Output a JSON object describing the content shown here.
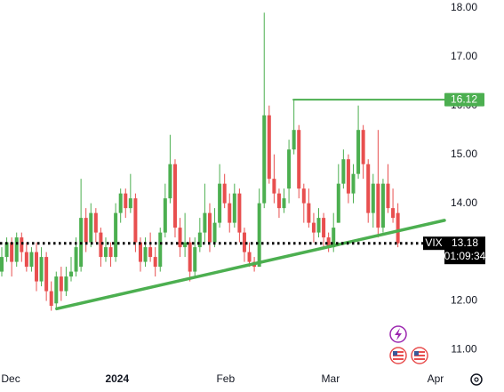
{
  "chart_data": {
    "type": "candlestick",
    "symbol": "VIX",
    "countdown": "01:09:34",
    "up_color": "#4caf50",
    "down_color": "#e84f4f",
    "open": [
      12.6,
      12.9,
      13.2,
      12.8,
      13.3,
      13.0,
      12.7,
      13.0,
      12.4,
      12.9,
      12.2,
      11.95,
      12.5,
      12.2,
      12.5,
      12.6,
      12.7,
      13.7,
      13.2,
      13.8,
      13.4,
      12.9,
      13.1,
      12.9,
      13.8,
      14.2,
      13.9,
      14.1,
      13.2,
      12.8,
      13.1,
      12.9,
      12.7,
      13.4,
      14.1,
      14.8,
      13.5,
      13.1,
      13.2,
      12.6,
      13.1,
      13.4,
      13.8,
      13.2,
      13.6,
      14.4,
      14.0,
      13.6,
      14.2,
      13.4,
      13.0,
      12.8,
      12.7,
      14.0,
      15.8,
      14.5,
      14.2,
      13.9,
      14.3,
      15.1,
      15.5,
      14.3,
      14.0,
      13.6,
      13.4,
      13.7,
      13.3,
      13.1,
      13.6,
      14.4,
      14.9,
      14.2,
      14.6,
      15.5,
      14.8,
      13.8,
      14.4,
      13.5,
      14.4,
      13.9,
      13.8
    ],
    "high": [
      13.1,
      13.3,
      13.3,
      13.4,
      13.4,
      13.2,
      13.1,
      13.2,
      13.1,
      13.0,
      12.4,
      12.6,
      12.7,
      12.7,
      12.9,
      13.3,
      14.5,
      13.9,
      14.0,
      13.9,
      13.5,
      13.3,
      13.2,
      14.0,
      14.3,
      14.3,
      14.6,
      14.2,
      13.3,
      13.3,
      13.4,
      13.1,
      13.5,
      14.4,
      15.4,
      14.9,
      13.7,
      13.8,
      13.3,
      13.3,
      13.7,
      14.4,
      14.0,
      13.9,
      14.8,
      14.6,
      14.2,
      14.4,
      14.3,
      13.5,
      13.2,
      12.9,
      14.3,
      17.9,
      16.0,
      15.0,
      14.3,
      14.3,
      15.3,
      16.12,
      15.6,
      14.4,
      14.3,
      13.8,
      13.9,
      13.8,
      13.4,
      13.8,
      14.8,
      15.1,
      15.0,
      14.8,
      16.0,
      15.6,
      14.9,
      14.6,
      15.5,
      14.5,
      14.8,
      14.3,
      14.0
    ],
    "low": [
      12.5,
      12.8,
      12.5,
      12.7,
      12.8,
      12.6,
      12.6,
      12.2,
      12.3,
      12.0,
      11.8,
      11.85,
      12.0,
      12.1,
      12.4,
      12.5,
      12.6,
      13.0,
      13.1,
      13.2,
      12.7,
      12.8,
      12.7,
      12.8,
      13.6,
      13.7,
      13.8,
      13.0,
      12.6,
      12.7,
      12.8,
      12.5,
      12.6,
      13.3,
      14.0,
      13.3,
      12.9,
      12.9,
      12.4,
      12.5,
      13.0,
      13.2,
      13.0,
      13.1,
      13.5,
      13.9,
      13.4,
      13.5,
      13.2,
      12.8,
      12.7,
      12.6,
      12.7,
      13.9,
      14.4,
      14.0,
      13.7,
      13.8,
      14.0,
      15.0,
      14.1,
      13.6,
      13.5,
      13.2,
      13.3,
      13.1,
      13.0,
      13.0,
      13.6,
      14.3,
      14.0,
      14.0,
      14.5,
      14.5,
      13.6,
      13.5,
      13.3,
      13.4,
      13.8,
      13.6,
      13.1
    ],
    "close": [
      12.9,
      13.2,
      12.8,
      13.3,
      13.0,
      12.7,
      13.0,
      12.4,
      12.9,
      12.2,
      11.9,
      12.5,
      12.2,
      12.5,
      12.6,
      13.1,
      13.7,
      13.2,
      13.8,
      13.4,
      12.9,
      13.1,
      12.9,
      13.8,
      14.2,
      13.9,
      14.1,
      13.2,
      12.8,
      13.1,
      12.9,
      12.7,
      13.4,
      14.1,
      14.8,
      13.5,
      13.1,
      13.2,
      12.6,
      13.1,
      13.4,
      13.8,
      13.2,
      13.6,
      14.4,
      14.0,
      13.6,
      14.2,
      13.4,
      13.0,
      12.8,
      12.7,
      14.0,
      15.8,
      14.5,
      14.2,
      13.9,
      14.1,
      15.1,
      15.5,
      14.3,
      14.0,
      13.6,
      13.4,
      13.7,
      13.3,
      13.1,
      13.5,
      14.4,
      14.9,
      14.2,
      14.6,
      15.5,
      14.8,
      13.8,
      14.4,
      13.5,
      14.4,
      13.9,
      13.7,
      13.18
    ],
    "last_price": 13.18,
    "lines": [
      {
        "color": "#4caf50",
        "x": [
          11.1,
          89.4
        ],
        "y": [
          11.84,
          13.65
        ]
      },
      {
        "color": "#4caf50",
        "x": [
          58.9,
          89.4
        ],
        "y": [
          16.12,
          16.12
        ]
      }
    ],
    "xlim": [
      -0.36,
      89.4
    ],
    "ylim": [
      10.7,
      18.16
    ],
    "xticks": [
      {
        "value": 1.8,
        "label": "Dec"
      },
      {
        "value": 23.3,
        "label": "2024"
      },
      {
        "value": 45.2,
        "label": "Feb"
      },
      {
        "value": 66.4,
        "label": "Mar"
      },
      {
        "value": 87.6,
        "label": "Apr"
      }
    ],
    "yticks": [
      {
        "value": 11,
        "label": "11.00"
      },
      {
        "value": 12,
        "label": "12.00"
      },
      {
        "value": 13,
        "label": "13.00"
      },
      {
        "value": 14,
        "label": "14.00"
      },
      {
        "value": 15,
        "label": "15.00"
      },
      {
        "value": 16,
        "label": "16.00"
      },
      {
        "value": 17,
        "label": "17.00"
      },
      {
        "value": 18,
        "label": "18.00"
      }
    ]
  }
}
